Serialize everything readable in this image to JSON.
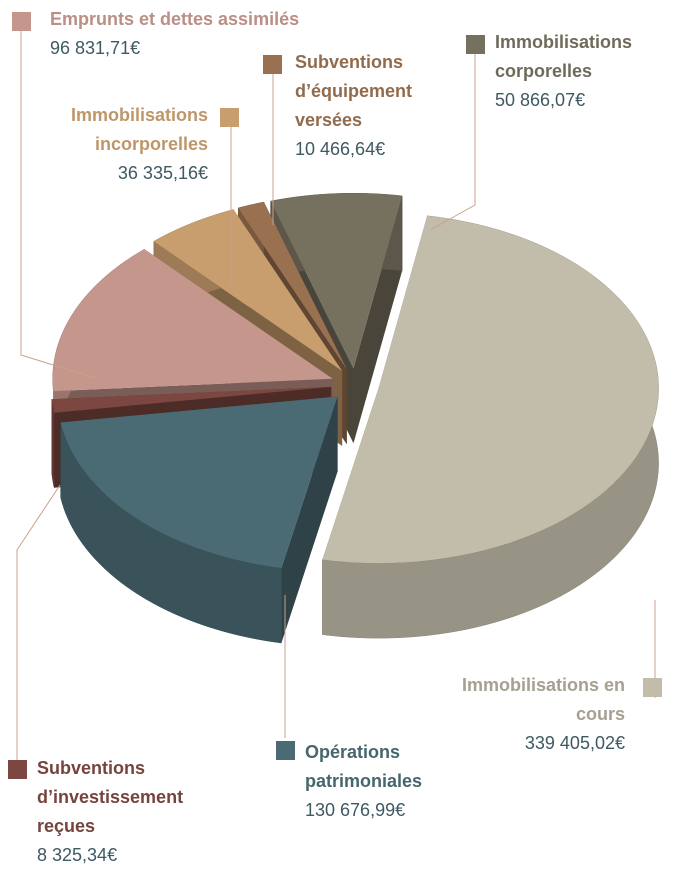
{
  "chart_data": {
    "type": "pie",
    "categories": [
      "Immobilisations en cours",
      "Opérations patrimoniales",
      "Subventions d’investissement reçues",
      "Emprunts et dettes assimilés",
      "Immobilisations incorporelles",
      "Subventions d’équipement versées",
      "Immobilisations corporelles"
    ],
    "values": [
      339405.02,
      130676.99,
      8325.34,
      96831.71,
      36335.16,
      10466.64,
      50866.07
    ],
    "value_labels": [
      "339 405,02€",
      "130 676,99€",
      "8 325,34€",
      "96 831,71€",
      "36 335,16€",
      "10 466,64€",
      "50 866,07€"
    ],
    "colors": [
      "#c2bcaa",
      "#4a6b73",
      "#7c4740",
      "#c4968c",
      "#c99e6e",
      "#9a7150",
      "#76705f"
    ]
  }
}
